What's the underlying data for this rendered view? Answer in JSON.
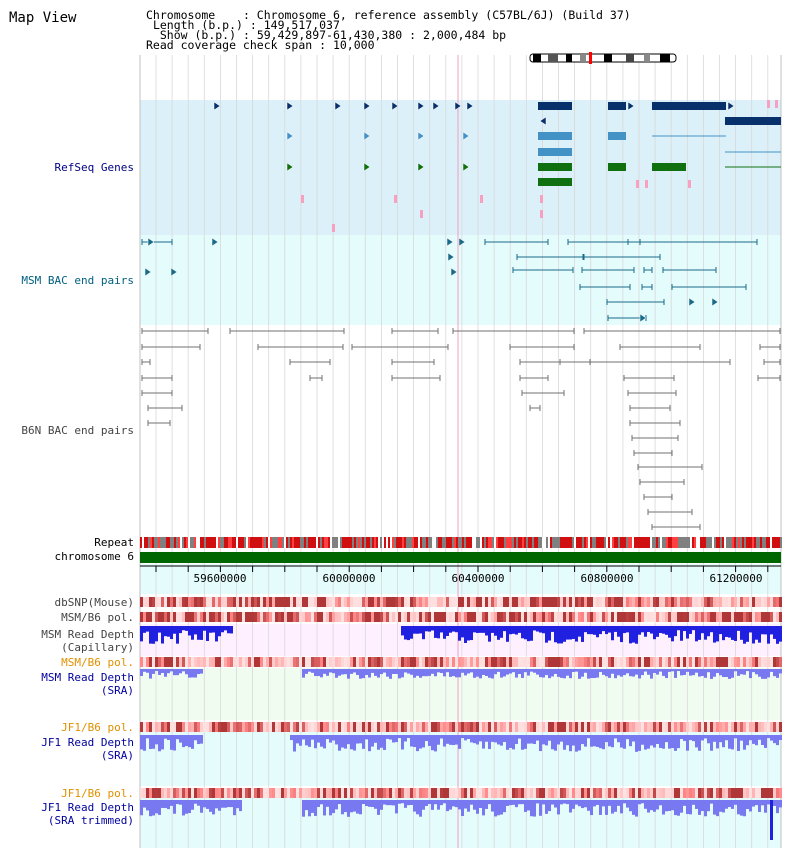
{
  "page_title": "Map View",
  "info": {
    "chromosome_label": "Chromosome",
    "chromosome_value": "Chromosome 6, reference assembly (C57BL/6J) (Build 37)",
    "length_label": "Length (b.p.)",
    "length_value": "149,517,037",
    "show_label": "Show (b.p.)",
    "show_value": "59,429,897-61,430,380 : 2,000,484 bp",
    "span_label": "Read coverage check span",
    "span_value": "10,000"
  },
  "tracks": {
    "refseq": "RefSeq Genes",
    "msm_bac": "MSM BAC end pairs",
    "b6n_bac": "B6N BAC end pairs",
    "repeat": "Repeat",
    "chromosome": "chromosome 6",
    "dbsnp": "dbSNP(Mouse)",
    "msm_b6_pol": "MSM/B6 pol.",
    "msm_depth_cap": "MSM Read Depth\n(Capillary)",
    "msm_b6_pol_sra": "MSM/B6 pol.",
    "msm_depth_sra": "MSM Read Depth\n(SRA)",
    "jf1_b6_pol": "JF1/B6 pol.",
    "jf1_depth_sra": "JF1 Read Depth\n(SRA)",
    "jf1_b6_pol_trim": "JF1/B6 pol.",
    "jf1_depth_trim": "JF1 Read Depth\n(SRA trimmed)"
  },
  "ruler": {
    "ticks": [
      "59600000",
      "60000000",
      "60400000",
      "60800000",
      "61200000"
    ]
  },
  "colors": {
    "refseq_bg": "#dcf0fa",
    "msm_bac_bg": "#e4fcfc",
    "b6n_bg": "#ffffff",
    "gene_navy": "#08306b",
    "gene_mid": "#4292c6",
    "gene_green": "#107010",
    "msm_bac_line": "#1a6a8a",
    "b6n_line": "#666666",
    "chromosome_bar": "#006600",
    "depth_blue": "#2020e0",
    "depth_light": "#7878f0"
  }
}
